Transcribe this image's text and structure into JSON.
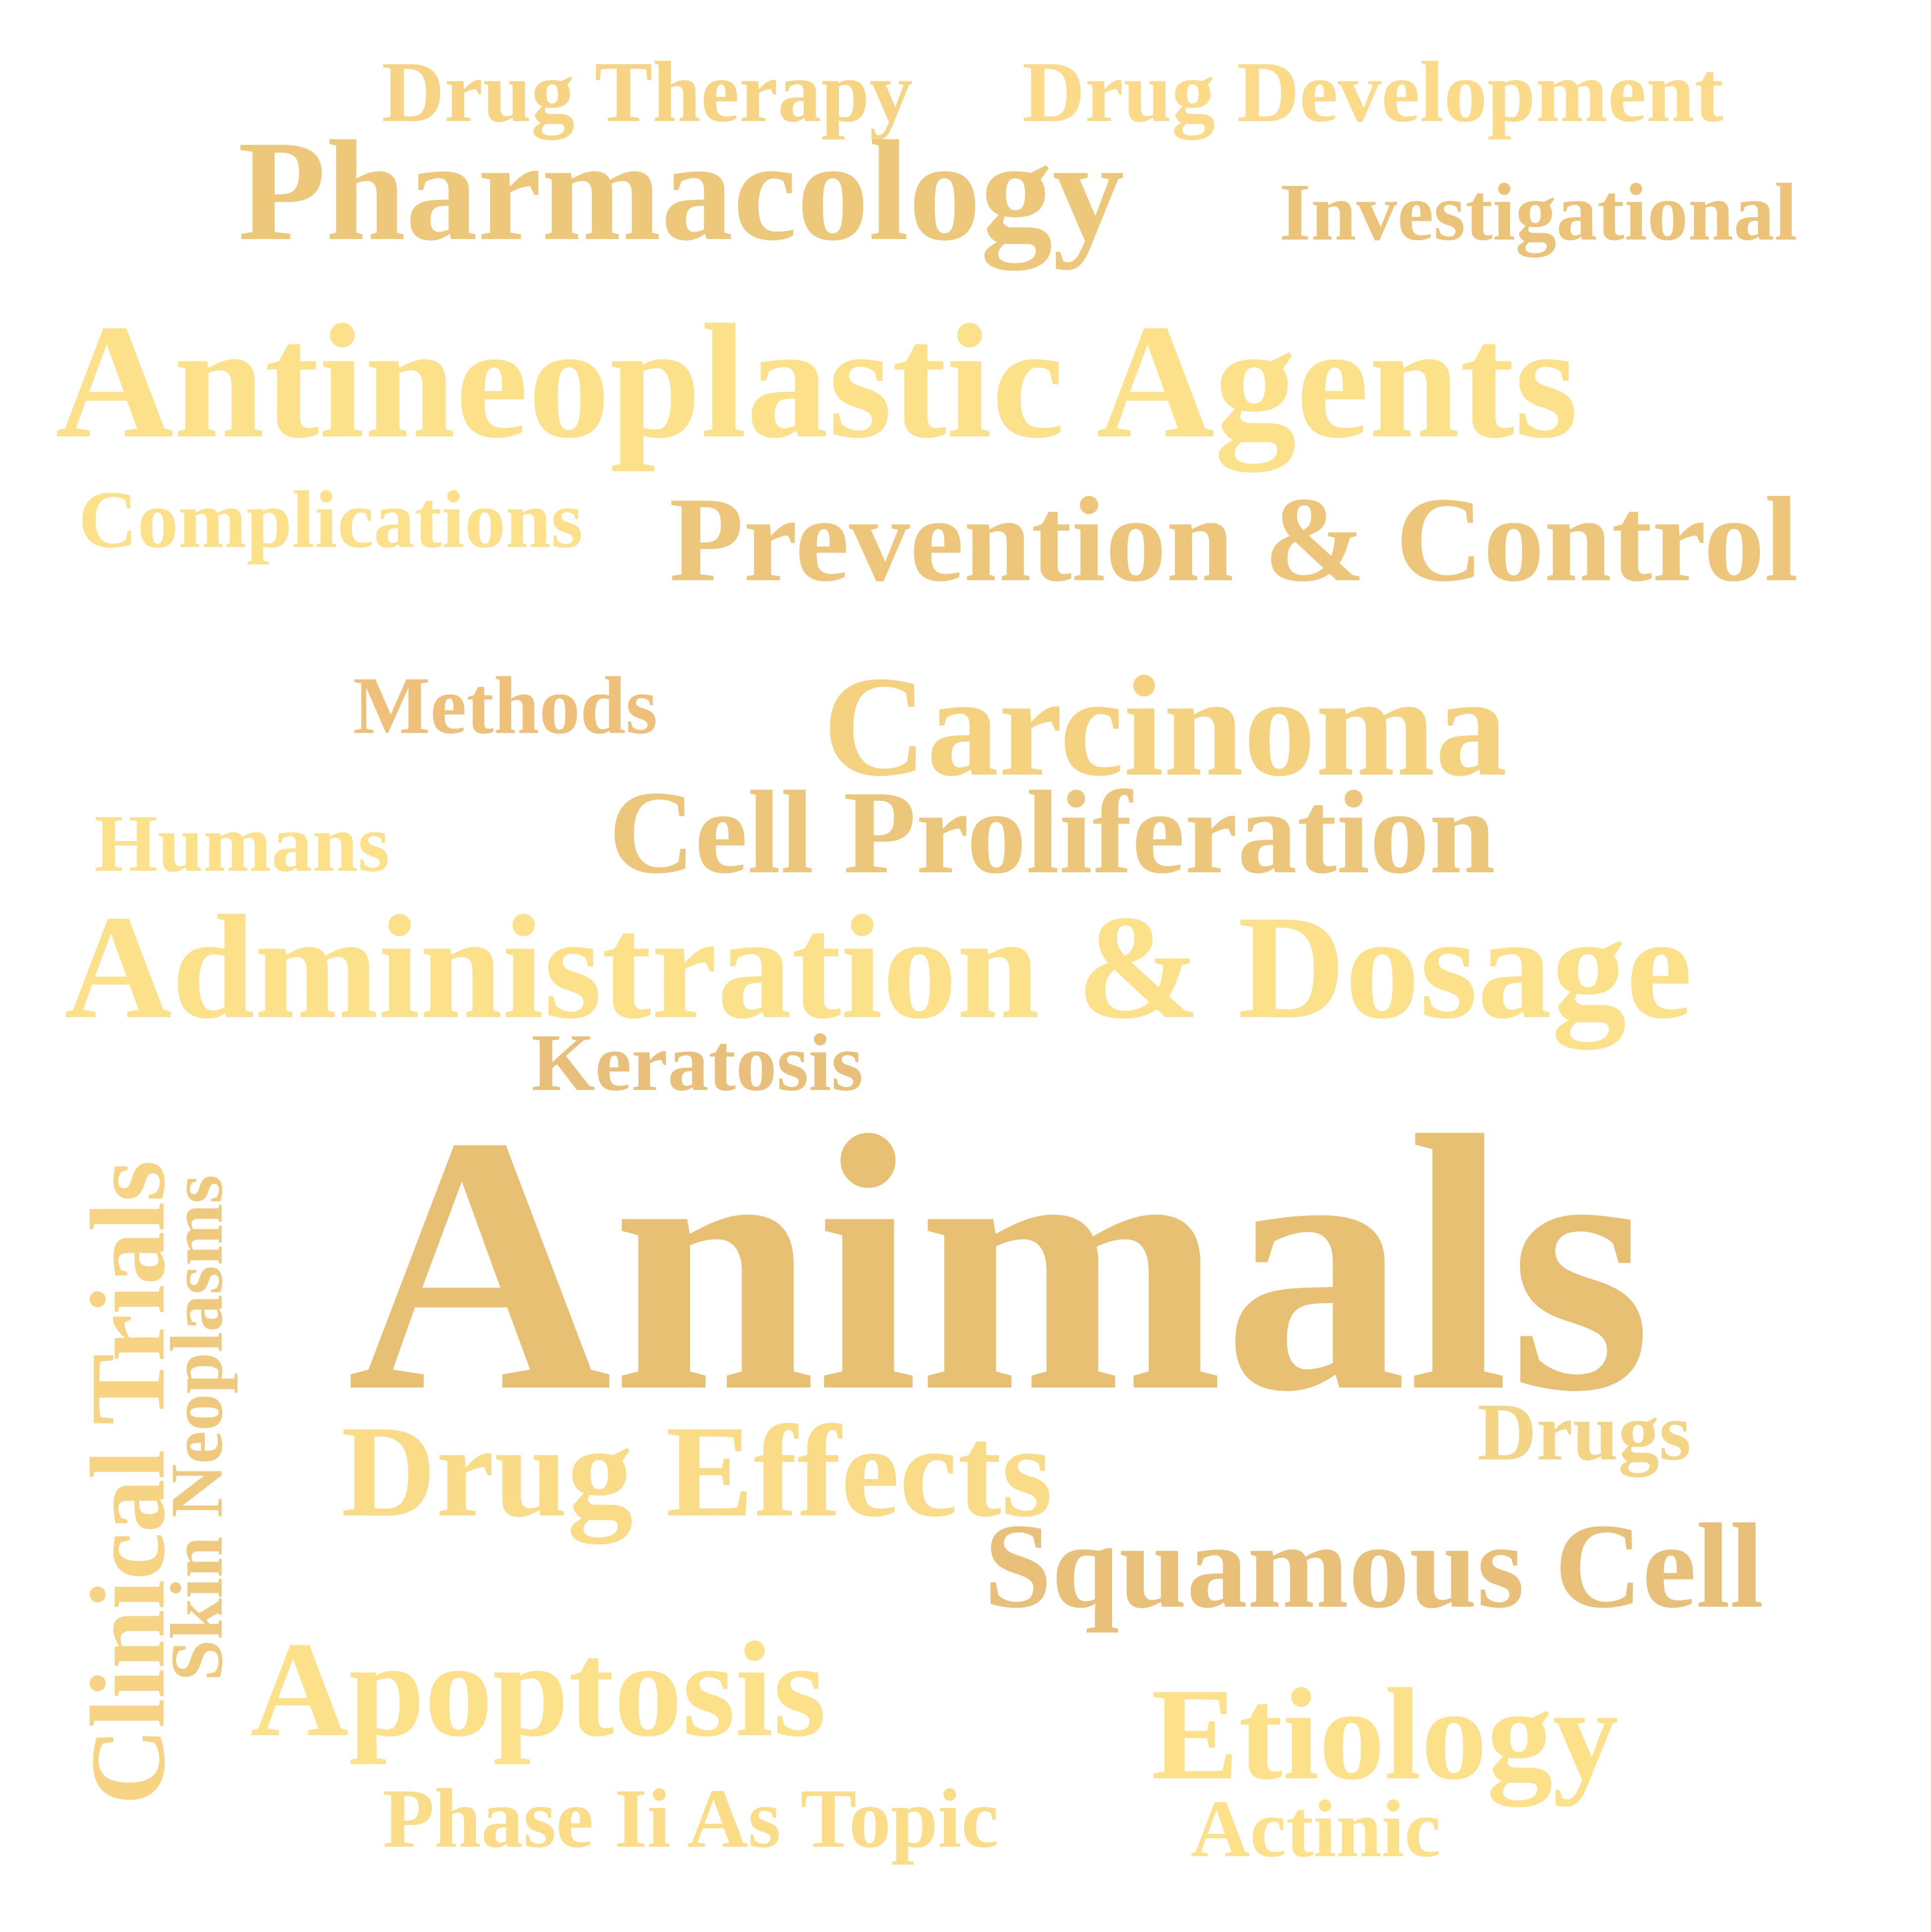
{
  "colors": {
    "background": "#ffffff",
    "word_light": "#fde08a",
    "word_mid": "#f3d180",
    "word_dark": "#e8c074"
  },
  "words": {
    "drug_therapy": "Drug Therapy",
    "drug_development": "Drug Development",
    "pharmacology": "Pharmacology",
    "investigational": "Investigational",
    "antineoplastic_agents": "Antineoplastic Agents",
    "complications": "Complications",
    "prevention_control": "Prevention & Control",
    "methods": "Methods",
    "carcinoma": "Carcinoma",
    "humans": "Humans",
    "cell_proliferation": "Cell Proliferation",
    "administration_dosage": "Administration & Dosage",
    "keratosis": "Keratosis",
    "animals": "Animals",
    "clinical_trials": "Clinical Trials",
    "skin_neoplasms": "Skin Neoplasms",
    "drugs": "Drugs",
    "drug_effects": "Drug Effects",
    "squamous_cell": "Squamous Cell",
    "apoptosis": "Apoptosis",
    "etiology": "Etiology",
    "phase_ii_as_topic": "Phase Ii As Topic",
    "actinic": "Actinic"
  }
}
